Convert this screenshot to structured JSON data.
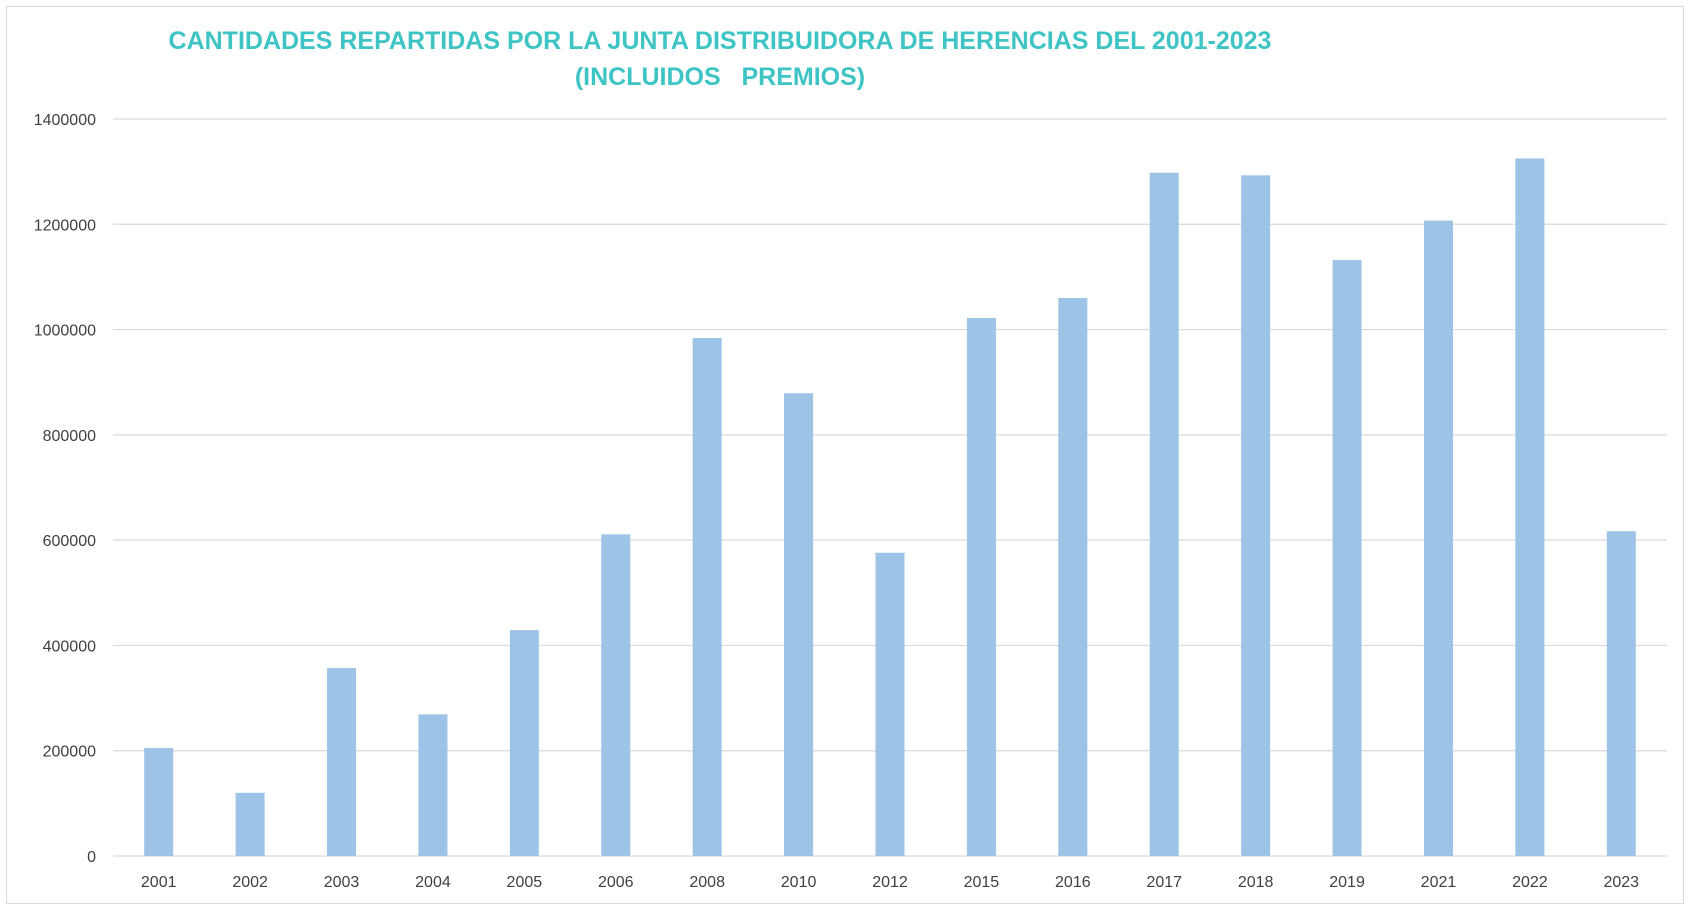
{
  "chart_data": {
    "type": "bar",
    "title": "CANTIDADES REPARTIDAS POR LA JUNTA DISTRIBUIDORA DE HERENCIAS DEL 2001-2023",
    "subtitle": "(INCLUIDOS   PREMIOS)",
    "xlabel": "",
    "ylabel": "",
    "categories": [
      "2001",
      "2002",
      "2003",
      "2004",
      "2005",
      "2006",
      "2008",
      "2010",
      "2012",
      "2015",
      "2016",
      "2017",
      "2018",
      "2019",
      "2021",
      "2022",
      "2023"
    ],
    "series": [
      {
        "values": [
          205000,
          120000,
          357000,
          269000,
          429000,
          611000,
          984000,
          879000,
          576000,
          1022000,
          1060000,
          1298000,
          1293000,
          1132000,
          1207000,
          1325000,
          617000
        ],
        "color": "#9dc3e6"
      }
    ],
    "ylim": [
      0,
      1400000
    ],
    "yticks": [
      0,
      200000,
      400000,
      600000,
      800000,
      1000000,
      1200000,
      1400000
    ],
    "grid": true,
    "legend": "none",
    "colors": {
      "bar": "#9dc3e6",
      "grid": "#d9d9d9",
      "title": "#3ec4c4",
      "axis_text": "#404040"
    }
  }
}
